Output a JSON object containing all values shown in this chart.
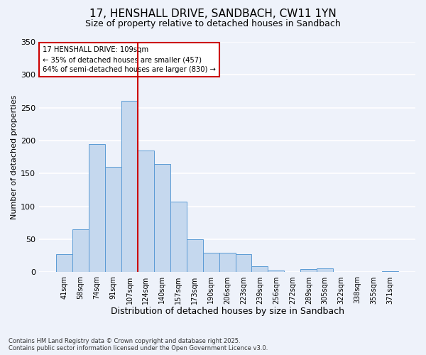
{
  "title_line1": "17, HENSHALL DRIVE, SANDBACH, CW11 1YN",
  "title_line2": "Size of property relative to detached houses in Sandbach",
  "xlabel": "Distribution of detached houses by size in Sandbach",
  "ylabel": "Number of detached properties",
  "categories": [
    "41sqm",
    "58sqm",
    "74sqm",
    "91sqm",
    "107sqm",
    "124sqm",
    "140sqm",
    "157sqm",
    "173sqm",
    "190sqm",
    "206sqm",
    "223sqm",
    "239sqm",
    "256sqm",
    "272sqm",
    "289sqm",
    "305sqm",
    "322sqm",
    "338sqm",
    "355sqm",
    "371sqm"
  ],
  "values": [
    28,
    65,
    195,
    160,
    260,
    185,
    165,
    107,
    50,
    30,
    30,
    28,
    9,
    3,
    0,
    5,
    6,
    0,
    0,
    0,
    2
  ],
  "bar_color": "#C5D8EE",
  "bar_edge_color": "#5B9BD5",
  "vline_color": "#CC0000",
  "vline_x": 4.5,
  "annotation_text_line1": "17 HENSHALL DRIVE: 109sqm",
  "annotation_text_line2": "← 35% of detached houses are smaller (457)",
  "annotation_text_line3": "64% of semi-detached houses are larger (830) →",
  "annotation_box_color": "#CC0000",
  "annotation_fill": "#FFFFFF",
  "ylim": [
    0,
    350
  ],
  "yticks": [
    0,
    50,
    100,
    150,
    200,
    250,
    300,
    350
  ],
  "footer_line1": "Contains HM Land Registry data © Crown copyright and database right 2025.",
  "footer_line2": "Contains public sector information licensed under the Open Government Licence v3.0.",
  "bg_color": "#EEF2FA",
  "grid_color": "#FFFFFF",
  "title_fontsize": 11,
  "subtitle_fontsize": 9,
  "axis_label_fontsize": 8,
  "tick_fontsize": 7,
  "footer_fontsize": 6
}
